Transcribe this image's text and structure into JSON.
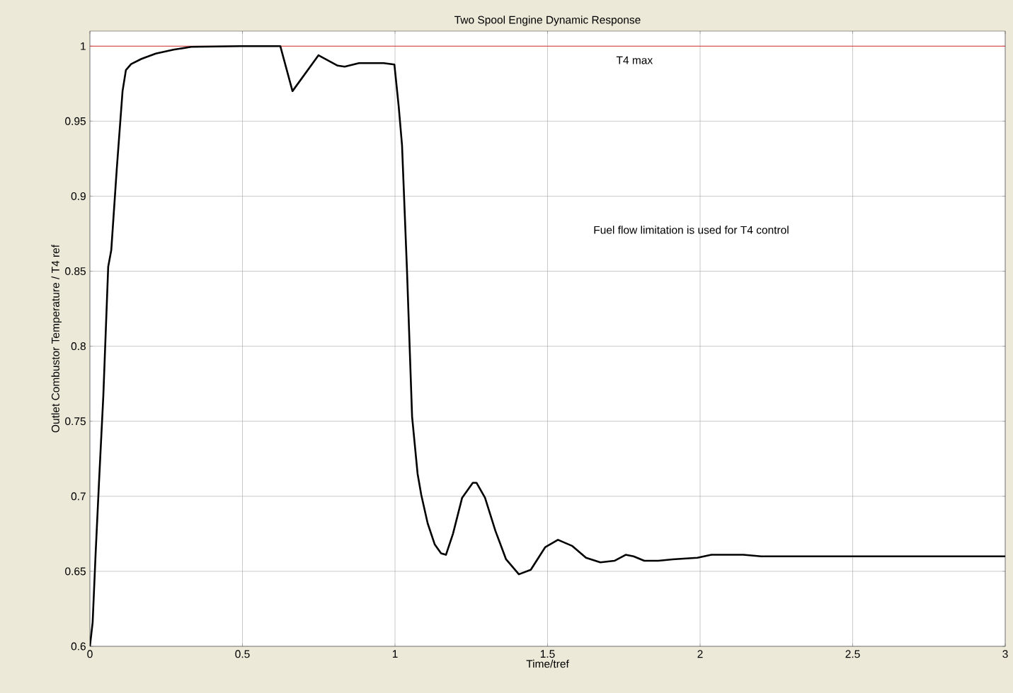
{
  "chart_data": {
    "type": "line",
    "title": "Two Spool Engine Dynamic Response",
    "xlabel": "Time/tref",
    "ylabel": "Outlet Combustor Temperature / T4 ref",
    "xlim": [
      0,
      3
    ],
    "ylim": [
      0.6,
      1.01
    ],
    "xticks": [
      0,
      0.5,
      1,
      1.5,
      2,
      2.5,
      3
    ],
    "yticks": [
      0.6,
      0.65,
      0.7,
      0.75,
      0.8,
      0.85,
      0.9,
      0.95,
      1
    ],
    "grid": true,
    "ref_lines": [
      {
        "axis": "y",
        "value": 1,
        "label": "T4 max",
        "color": "#e03030"
      }
    ],
    "annotations": [
      "Fuel flow limitation is used  for T4 control"
    ],
    "series": [
      {
        "color": "#000000",
        "x": [
          0,
          0.009,
          0.019,
          0.03,
          0.044,
          0.06,
          0.07,
          0.088,
          0.107,
          0.118,
          0.135,
          0.169,
          0.216,
          0.274,
          0.332,
          0.494,
          0.624,
          0.664,
          0.749,
          0.812,
          0.835,
          0.882,
          0.963,
          0.998,
          1.012,
          1.023,
          1.039,
          1.056,
          1.074,
          1.086,
          1.107,
          1.13,
          1.151,
          1.167,
          1.19,
          1.22,
          1.255,
          1.267,
          1.295,
          1.329,
          1.364,
          1.406,
          1.445,
          1.492,
          1.534,
          1.58,
          1.626,
          1.673,
          1.719,
          1.756,
          1.782,
          1.817,
          1.863,
          1.91,
          1.991,
          2.037,
          2.142,
          2.2,
          2.258,
          3
        ],
        "values": [
          0.6,
          0.616,
          0.663,
          0.71,
          0.767,
          0.853,
          0.864,
          0.918,
          0.97,
          0.984,
          0.988,
          0.9915,
          0.995,
          0.9976,
          0.9995,
          1,
          1,
          0.97,
          0.9939,
          0.987,
          0.9863,
          0.9887,
          0.9887,
          0.9877,
          0.96,
          0.934,
          0.852,
          0.753,
          0.715,
          0.701,
          0.682,
          0.668,
          0.662,
          0.661,
          0.675,
          0.699,
          0.709,
          0.709,
          0.699,
          0.677,
          0.658,
          0.648,
          0.651,
          0.666,
          0.671,
          0.667,
          0.659,
          0.656,
          0.657,
          0.661,
          0.66,
          0.657,
          0.657,
          0.658,
          0.659,
          0.661,
          0.661,
          0.66,
          0.66,
          0.66
        ]
      }
    ]
  }
}
